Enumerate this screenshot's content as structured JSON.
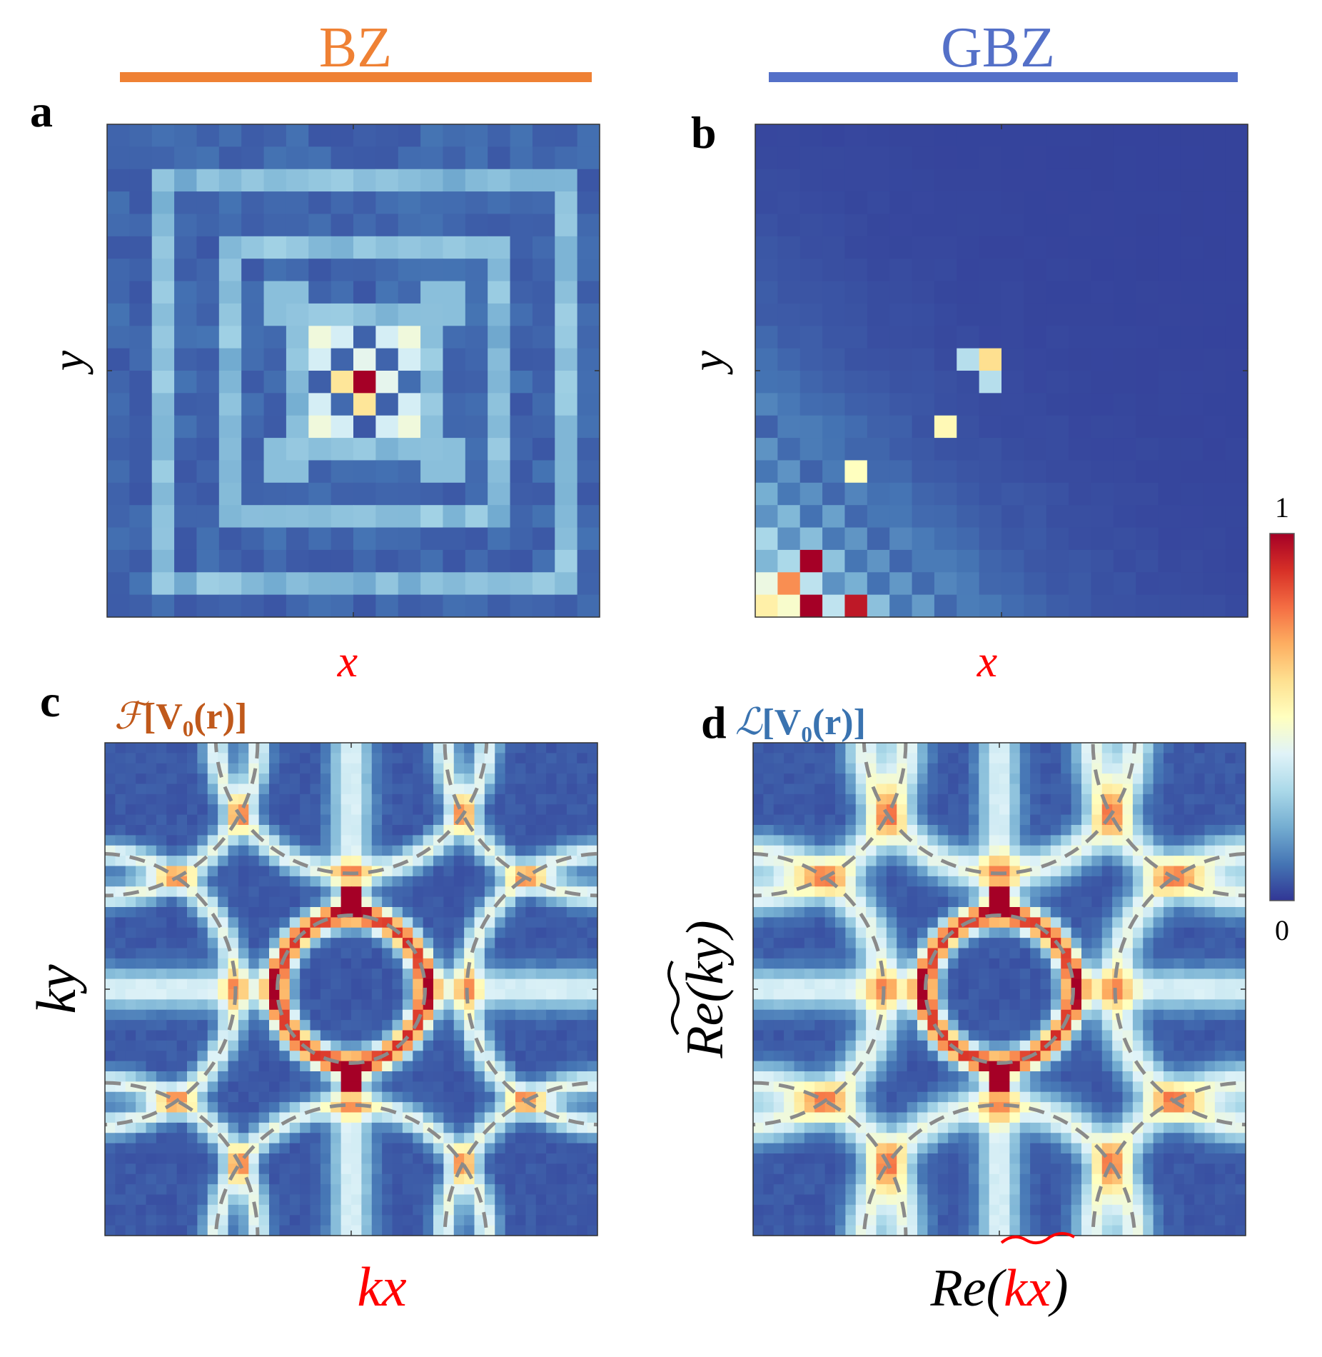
{
  "headers": {
    "bz": {
      "text": "BZ",
      "color": "#ef8134"
    },
    "gbz": {
      "text": "GBZ",
      "color": "#5470c8"
    }
  },
  "panels": {
    "a": {
      "letter": "a",
      "xlabel": "x",
      "ylabel": "y",
      "xlabel_color": "#ff0000",
      "ylabel_color": "#000000"
    },
    "b": {
      "letter": "b",
      "xlabel": "x",
      "ylabel": "y",
      "xlabel_color": "#ff0000",
      "ylabel_color": "#000000"
    },
    "c": {
      "letter": "c",
      "op_symbol": "ℱ",
      "op_body": "[V₀(r)]",
      "op_color": "#c0591b",
      "xlabel": "kx",
      "ylabel": "ky",
      "xlabel_color": "#ff0000",
      "ylabel_color": "#000000"
    },
    "d": {
      "letter": "d",
      "op_symbol": "ℒ",
      "op_body": "[V₀(r)]",
      "op_color": "#3a73b0",
      "xlabel_pre": "Re(",
      "xlabel_mid": "kx",
      "xlabel_post": ")",
      "ylabel_pre": "Re(",
      "ylabel_mid": "ky",
      "ylabel_post": ")"
    }
  },
  "colorbar": {
    "max_label": "1",
    "min_label": "0"
  },
  "colors": {
    "stops": [
      "#313695",
      "#4575b4",
      "#74add1",
      "#abd9e9",
      "#e0f3f8",
      "#ffffbf",
      "#fee090",
      "#fdae61",
      "#f46d43",
      "#d73027",
      "#a50026"
    ]
  },
  "chart_data": [
    {
      "id": "a",
      "type": "heatmap",
      "domain": "real space (BZ)",
      "grid": [
        22,
        22
      ],
      "description_values": {
        "peak": [
          1.0,
          "centre site"
        ],
        "nearest_neighbours": 0.6,
        "diagonal_arms": 0.35,
        "square_rings": 0.18,
        "background": 0.05
      },
      "xlim": [
        -1,
        1
      ],
      "ylim": [
        -1,
        1
      ]
    },
    {
      "id": "b",
      "type": "heatmap",
      "domain": "real space (GBZ)",
      "grid": [
        22,
        22
      ],
      "description_values": {
        "corner_peaks": [
          1.0,
          "bottom-left"
        ],
        "secondary_peak": [
          0.6,
          "centre-right"
        ],
        "background": 0.02
      },
      "xlim": [
        -1,
        1
      ],
      "ylim": [
        -1,
        1
      ]
    },
    {
      "id": "c",
      "type": "heatmap",
      "domain": "momentum space",
      "grid": [
        48,
        48
      ],
      "central_ring": {
        "radius": 0.29,
        "value": 0.85
      },
      "corner_arcs_radius": 0.62,
      "dashed_circles": "grey",
      "xlim": [
        -1,
        1
      ],
      "ylim": [
        -1,
        1
      ]
    },
    {
      "id": "d",
      "type": "heatmap",
      "domain": "complex momentum (real parts)",
      "grid": [
        48,
        48
      ],
      "central_ring": {
        "radius": 0.29,
        "value": 0.85
      },
      "corner_arcs_radius": 0.62,
      "dashed_circles": "grey",
      "xlim": [
        -1,
        1
      ],
      "ylim": [
        -1,
        1
      ]
    }
  ]
}
